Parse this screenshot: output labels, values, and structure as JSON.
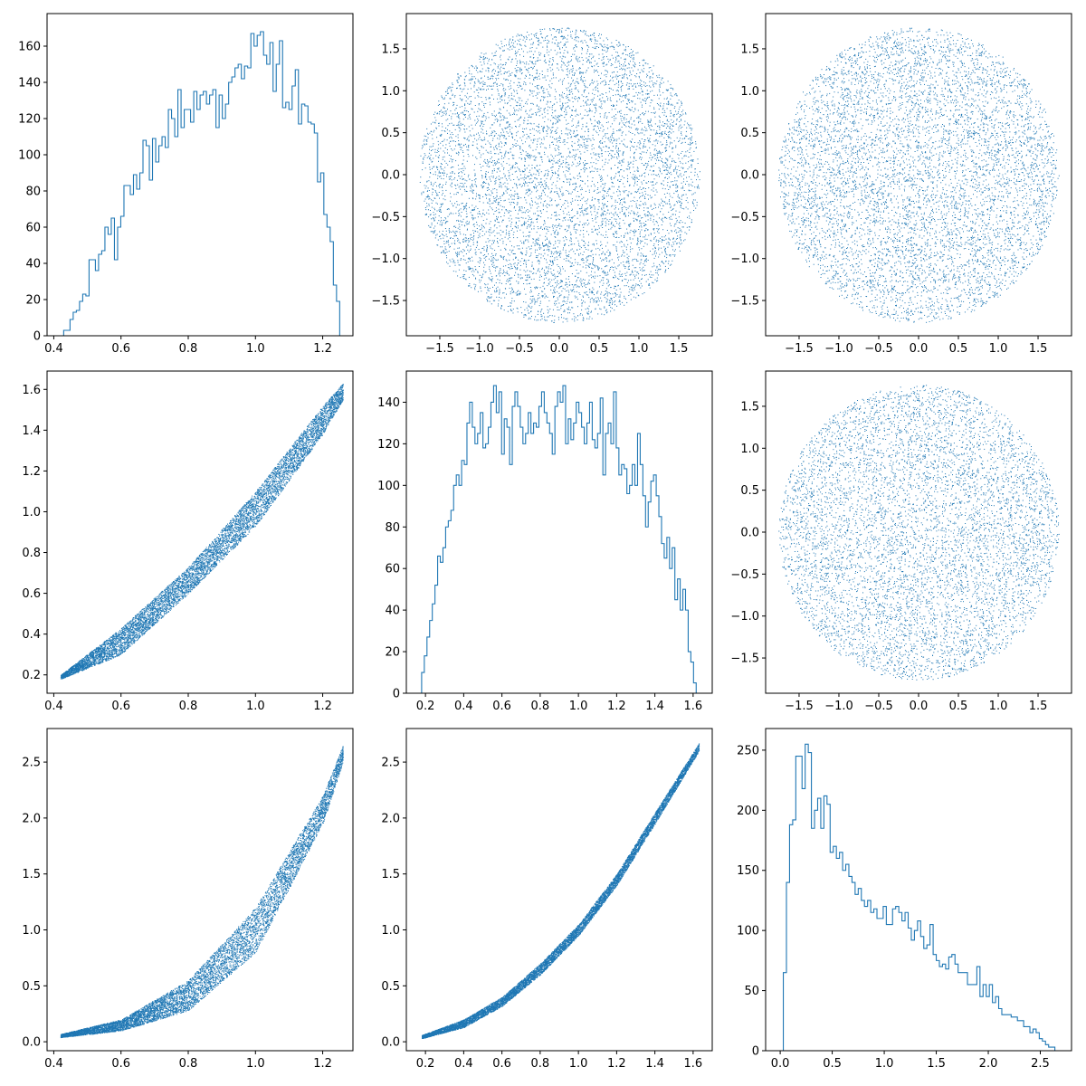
{
  "style": {
    "series_color": "#1f77b4",
    "axis_color": "#000000",
    "background": "#ffffff"
  },
  "chart_data": [
    {
      "type": "histogram",
      "xlim": [
        0.38,
        1.29
      ],
      "ylim": [
        0,
        178
      ],
      "xticks": [
        0.4,
        0.6,
        0.8,
        1.0,
        1.2
      ],
      "yticks": [
        0,
        20,
        40,
        60,
        80,
        100,
        120,
        140,
        160
      ],
      "bins": {
        "start": 0.42,
        "end": 1.26,
        "values": [
          0,
          3,
          3,
          9,
          13,
          14,
          19,
          23,
          22,
          42,
          42,
          36,
          45,
          47,
          60,
          56,
          65,
          42,
          60,
          66,
          83,
          83,
          78,
          89,
          81,
          90,
          108,
          105,
          86,
          109,
          96,
          105,
          110,
          104,
          125,
          120,
          110,
          136,
          115,
          125,
          125,
          118,
          135,
          125,
          133,
          135,
          128,
          133,
          136,
          115,
          133,
          120,
          128,
          140,
          143,
          148,
          150,
          142,
          149,
          148,
          167,
          160,
          166,
          168,
          155,
          150,
          162,
          135,
          150,
          163,
          126,
          129,
          125,
          138,
          147,
          117,
          128,
          127,
          118,
          117,
          112,
          85,
          90,
          67,
          60,
          52,
          28,
          19,
          0
        ]
      }
    },
    {
      "type": "scatter",
      "xlim": [
        -1.92,
        1.92
      ],
      "ylim": [
        -1.92,
        1.92
      ],
      "xticks": [
        -1.5,
        -1.0,
        -0.5,
        0.0,
        0.5,
        1.0,
        1.5
      ],
      "yticks": [
        -1.5,
        -1.0,
        -0.5,
        0.0,
        0.5,
        1.0,
        1.5
      ],
      "distribution": {
        "shape": "disk",
        "radius": 1.76,
        "n_points": 7000
      }
    },
    {
      "type": "scatter",
      "xlim": [
        -1.92,
        1.92
      ],
      "ylim": [
        -1.92,
        1.92
      ],
      "xticks": [
        -1.5,
        -1.0,
        -0.5,
        0.0,
        0.5,
        1.0,
        1.5
      ],
      "yticks": [
        -1.5,
        -1.0,
        -0.5,
        0.0,
        0.5,
        1.0,
        1.5
      ],
      "distribution": {
        "shape": "disk",
        "radius": 1.76,
        "n_points": 7000
      }
    },
    {
      "type": "scatter",
      "xlim": [
        0.38,
        1.29
      ],
      "ylim": [
        0.11,
        1.69
      ],
      "xticks": [
        0.4,
        0.6,
        0.8,
        1.0,
        1.2
      ],
      "yticks": [
        0.2,
        0.4,
        0.6,
        0.8,
        1.0,
        1.2,
        1.4,
        1.6
      ],
      "distribution": {
        "shape": "band",
        "x_range": [
          0.42,
          1.26
        ],
        "lower": [
          [
            0.42,
            0.18
          ],
          [
            0.6,
            0.3
          ],
          [
            0.8,
            0.6
          ],
          [
            1.0,
            0.93
          ],
          [
            1.2,
            1.38
          ],
          [
            1.26,
            1.55
          ]
        ],
        "upper": [
          [
            0.42,
            0.2
          ],
          [
            0.6,
            0.43
          ],
          [
            0.8,
            0.73
          ],
          [
            1.0,
            1.1
          ],
          [
            1.2,
            1.52
          ],
          [
            1.26,
            1.63
          ]
        ],
        "n_points": 8000
      }
    },
    {
      "type": "histogram",
      "xlim": [
        0.1,
        1.7
      ],
      "ylim": [
        0,
        155
      ],
      "xticks": [
        0.2,
        0.4,
        0.6,
        0.8,
        1.0,
        1.2,
        1.4,
        1.6
      ],
      "yticks": [
        0,
        20,
        40,
        60,
        80,
        100,
        120,
        140
      ],
      "bins": {
        "start": 0.18,
        "end": 1.63,
        "values": [
          10,
          18,
          27,
          35,
          43,
          52,
          66,
          63,
          70,
          80,
          83,
          88,
          100,
          105,
          100,
          112,
          110,
          130,
          140,
          128,
          120,
          125,
          135,
          118,
          120,
          128,
          140,
          148,
          135,
          145,
          115,
          132,
          128,
          110,
          138,
          145,
          138,
          128,
          120,
          125,
          135,
          125,
          130,
          128,
          138,
          145,
          135,
          130,
          125,
          115,
          138,
          145,
          140,
          148,
          120,
          132,
          122,
          130,
          140,
          135,
          128,
          120,
          130,
          140,
          122,
          118,
          125,
          142,
          105,
          125,
          130,
          120,
          145,
          118,
          105,
          110,
          108,
          96,
          100,
          110,
          100,
          125,
          110,
          95,
          80,
          92,
          102,
          105,
          95,
          85,
          72,
          65,
          75,
          60,
          70,
          45,
          55,
          40,
          50,
          40,
          20,
          15,
          5,
          0
        ]
      }
    },
    {
      "type": "scatter",
      "xlim": [
        -1.92,
        1.92
      ],
      "ylim": [
        -1.92,
        1.92
      ],
      "xticks": [
        -1.5,
        -1.0,
        -0.5,
        0.0,
        0.5,
        1.0,
        1.5
      ],
      "yticks": [
        -1.5,
        -1.0,
        -0.5,
        0.0,
        0.5,
        1.0,
        1.5
      ],
      "distribution": {
        "shape": "disk",
        "radius": 1.76,
        "n_points": 7000
      }
    },
    {
      "type": "scatter",
      "xlim": [
        0.38,
        1.29
      ],
      "ylim": [
        -0.08,
        2.8
      ],
      "xticks": [
        0.4,
        0.6,
        0.8,
        1.0,
        1.2
      ],
      "yticks": [
        0.0,
        0.5,
        1.0,
        1.5,
        2.0,
        2.5
      ],
      "distribution": {
        "shape": "band",
        "x_range": [
          0.42,
          1.26
        ],
        "lower": [
          [
            0.42,
            0.04
          ],
          [
            0.6,
            0.1
          ],
          [
            0.8,
            0.28
          ],
          [
            1.0,
            0.8
          ],
          [
            1.2,
            1.95
          ],
          [
            1.26,
            2.5
          ]
        ],
        "upper": [
          [
            0.42,
            0.07
          ],
          [
            0.6,
            0.2
          ],
          [
            0.8,
            0.55
          ],
          [
            1.0,
            1.2
          ],
          [
            1.2,
            2.2
          ],
          [
            1.26,
            2.65
          ]
        ],
        "n_points": 8000
      }
    },
    {
      "type": "scatter",
      "xlim": [
        0.1,
        1.7
      ],
      "ylim": [
        -0.08,
        2.8
      ],
      "xticks": [
        0.2,
        0.4,
        0.6,
        0.8,
        1.0,
        1.2,
        1.4,
        1.6
      ],
      "yticks": [
        0.0,
        0.5,
        1.0,
        1.5,
        2.0,
        2.5
      ],
      "distribution": {
        "shape": "band",
        "x_range": [
          0.18,
          1.63
        ],
        "lower": [
          [
            0.18,
            0.03
          ],
          [
            0.4,
            0.13
          ],
          [
            0.6,
            0.32
          ],
          [
            0.8,
            0.6
          ],
          [
            1.0,
            0.95
          ],
          [
            1.2,
            1.4
          ],
          [
            1.4,
            1.95
          ],
          [
            1.63,
            2.6
          ]
        ],
        "upper": [
          [
            0.18,
            0.06
          ],
          [
            0.4,
            0.2
          ],
          [
            0.6,
            0.4
          ],
          [
            0.8,
            0.7
          ],
          [
            1.0,
            1.05
          ],
          [
            1.2,
            1.5
          ],
          [
            1.4,
            2.05
          ],
          [
            1.63,
            2.67
          ]
        ],
        "n_points": 8000
      }
    },
    {
      "type": "histogram",
      "xlim": [
        -0.14,
        2.8
      ],
      "ylim": [
        0,
        268
      ],
      "xticks": [
        0.0,
        0.5,
        1.0,
        1.5,
        2.0,
        2.5
      ],
      "yticks": [
        0,
        50,
        100,
        150,
        200,
        250
      ],
      "bins": {
        "start": 0.03,
        "end": 2.67,
        "values": [
          65,
          140,
          188,
          192,
          245,
          245,
          218,
          255,
          248,
          185,
          200,
          210,
          185,
          212,
          205,
          165,
          170,
          160,
          165,
          150,
          155,
          145,
          140,
          130,
          135,
          125,
          120,
          125,
          115,
          118,
          110,
          110,
          120,
          105,
          105,
          118,
          120,
          115,
          108,
          115,
          102,
          92,
          100,
          108,
          95,
          85,
          88,
          105,
          80,
          75,
          70,
          72,
          68,
          78,
          80,
          72,
          65,
          65,
          65,
          55,
          55,
          55,
          70,
          45,
          55,
          45,
          55,
          40,
          45,
          35,
          30,
          30,
          30,
          28,
          28,
          25,
          25,
          20,
          20,
          15,
          18,
          15,
          10,
          8,
          5,
          3,
          3,
          0
        ]
      }
    }
  ]
}
